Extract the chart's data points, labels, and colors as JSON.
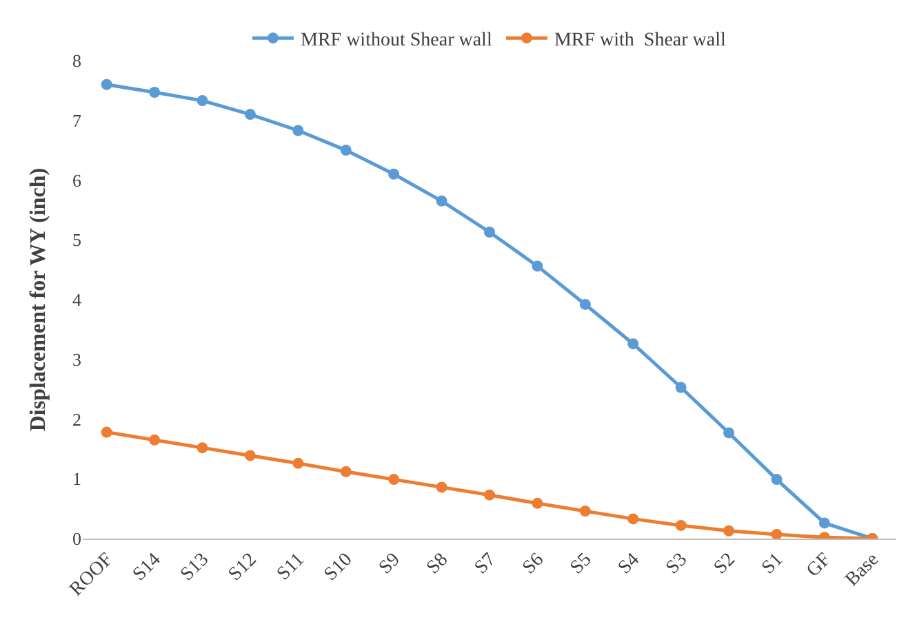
{
  "chart_data": {
    "type": "line",
    "ylabel": "Displacement for WY (inch)",
    "categories": [
      "ROOF",
      "S14",
      "S13",
      "S12",
      "S11",
      "S10",
      "S9",
      "S8",
      "S7",
      "S6",
      "S5",
      "S4",
      "S3",
      "S2",
      "S1",
      "GF",
      "Base"
    ],
    "series": [
      {
        "name": "MRF without Shear wall",
        "color": "#5b9bd5",
        "values": [
          7.6,
          7.47,
          7.33,
          7.1,
          6.83,
          6.5,
          6.1,
          5.65,
          5.13,
          4.56,
          3.92,
          3.26,
          2.53,
          1.77,
          0.99,
          0.26,
          0
        ]
      },
      {
        "name": "MRF with  Shear wall",
        "color": "#ed7d31",
        "values": [
          1.78,
          1.65,
          1.52,
          1.39,
          1.26,
          1.12,
          0.99,
          0.86,
          0.73,
          0.59,
          0.46,
          0.33,
          0.22,
          0.13,
          0.07,
          0.02,
          0
        ]
      }
    ],
    "ylim": [
      0,
      8
    ],
    "yticks": [
      0,
      1,
      2,
      3,
      4,
      5,
      6,
      7,
      8
    ],
    "grid": false,
    "legend": "top",
    "marker": "circle",
    "line_style": "solid"
  }
}
